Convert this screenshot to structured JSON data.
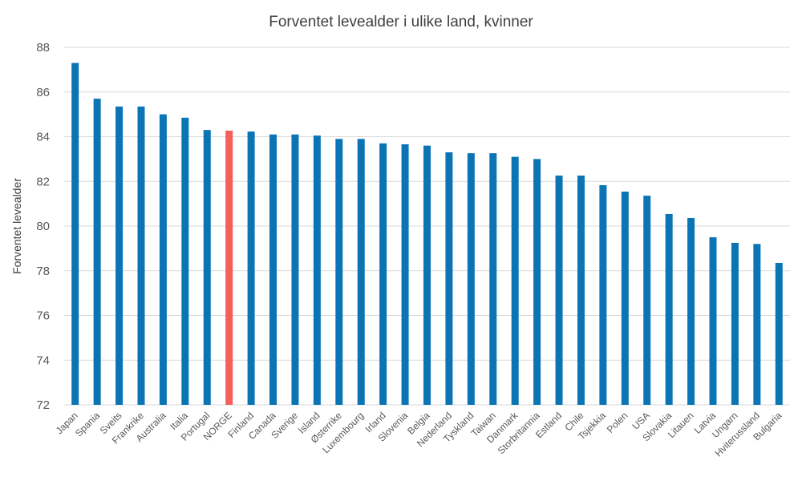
{
  "chart_data": {
    "type": "bar",
    "title": "Forventet levealder i ulike land, kvinner",
    "xlabel": "",
    "ylabel": "Forventet levealder",
    "ylim": [
      72,
      88
    ],
    "yticks": [
      72,
      74,
      76,
      78,
      80,
      82,
      84,
      86,
      88
    ],
    "grid": true,
    "categories": [
      "Japan",
      "Spania",
      "Sveits",
      "Frankrike",
      "Australia",
      "Italia",
      "Portugal",
      "NORGE",
      "Finland",
      "Canada",
      "Sverige",
      "Island",
      "Østerrike",
      "Luxembourg",
      "Irland",
      "Slovenia",
      "Belgia",
      "Nederland",
      "Tyskland",
      "Taiwan",
      "Danmark",
      "Storbritannia",
      "Estland",
      "Chile",
      "Tsjekkia",
      "Polen",
      "USA",
      "Slovakia",
      "Litauen",
      "Latvia",
      "Ungarn",
      "Hviterussland",
      "Bulgaria"
    ],
    "values": [
      87.3,
      85.7,
      85.35,
      85.35,
      85.0,
      84.85,
      84.3,
      84.27,
      84.23,
      84.1,
      84.1,
      84.05,
      83.9,
      83.9,
      83.7,
      83.66,
      83.6,
      83.3,
      83.26,
      83.26,
      83.1,
      83.0,
      82.26,
      82.26,
      81.83,
      81.54,
      81.36,
      80.54,
      80.36,
      79.5,
      79.25,
      79.2,
      78.35
    ],
    "highlight": "NORGE",
    "colors": {
      "bar": "#0b74b5",
      "highlight": "#f7605a"
    }
  }
}
